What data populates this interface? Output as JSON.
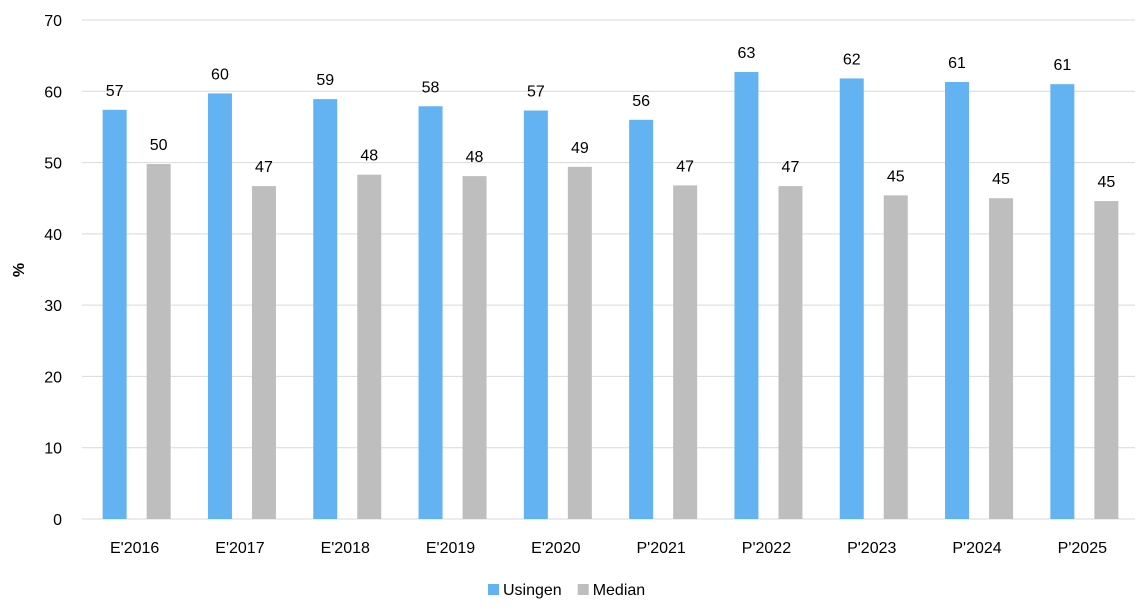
{
  "chart_data": {
    "type": "bar",
    "title": "",
    "xlabel": "",
    "ylabel": "%",
    "ylim": [
      0,
      70
    ],
    "yticks": [
      0,
      10,
      20,
      30,
      40,
      50,
      60,
      70
    ],
    "grid": "horizontal",
    "legend_position": "bottom-center",
    "categories": [
      "E'2016",
      "E'2017",
      "E'2018",
      "E'2019",
      "E'2020",
      "P'2021",
      "P'2022",
      "P'2023",
      "P'2024",
      "P'2025"
    ],
    "series": [
      {
        "name": "Usingen",
        "color": "#63B2F2",
        "values": [
          57.4,
          59.7,
          58.9,
          57.9,
          57.3,
          56.0,
          62.7,
          61.8,
          61.3,
          61.0
        ],
        "labels": [
          "57",
          "60",
          "59",
          "58",
          "57",
          "56",
          "63",
          "62",
          "61",
          "61"
        ]
      },
      {
        "name": "Median",
        "color": "#BEBEBE",
        "values": [
          49.8,
          46.7,
          48.3,
          48.1,
          49.4,
          46.8,
          46.7,
          45.4,
          45.0,
          44.6
        ],
        "labels": [
          "50",
          "47",
          "48",
          "48",
          "49",
          "47",
          "47",
          "45",
          "45",
          "45"
        ]
      }
    ]
  }
}
